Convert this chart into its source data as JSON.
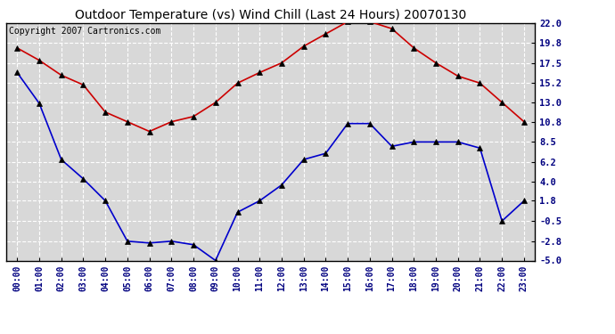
{
  "title": "Outdoor Temperature (vs) Wind Chill (Last 24 Hours) 20070130",
  "copyright": "Copyright 2007 Cartronics.com",
  "x_labels": [
    "00:00",
    "01:00",
    "02:00",
    "03:00",
    "04:00",
    "05:00",
    "06:00",
    "07:00",
    "08:00",
    "09:00",
    "10:00",
    "11:00",
    "12:00",
    "13:00",
    "14:00",
    "15:00",
    "16:00",
    "17:00",
    "18:00",
    "19:00",
    "20:00",
    "21:00",
    "22:00",
    "23:00"
  ],
  "temp_red": [
    19.2,
    17.8,
    16.1,
    15.0,
    11.9,
    10.8,
    9.7,
    10.8,
    11.4,
    13.0,
    15.2,
    16.4,
    17.5,
    19.4,
    20.8,
    22.2,
    22.2,
    21.4,
    19.2,
    17.5,
    16.0,
    15.2,
    13.0,
    10.8
  ],
  "wind_blue": [
    16.4,
    12.9,
    6.5,
    4.3,
    1.8,
    -2.8,
    -3.0,
    -2.8,
    -3.2,
    -5.0,
    0.5,
    1.8,
    3.6,
    6.5,
    7.2,
    10.6,
    10.6,
    8.0,
    8.5,
    8.5,
    8.5,
    7.8,
    -0.5,
    1.8
  ],
  "ylim": [
    -5.0,
    22.0
  ],
  "yticks": [
    22.0,
    19.8,
    17.5,
    15.2,
    13.0,
    10.8,
    8.5,
    6.2,
    4.0,
    1.8,
    -0.5,
    -2.8,
    -5.0
  ],
  "red_color": "#cc0000",
  "blue_color": "#0000cc",
  "bg_color": "#d8d8d8",
  "grid_color": "#ffffff",
  "title_fontsize": 10,
  "copyright_fontsize": 7
}
